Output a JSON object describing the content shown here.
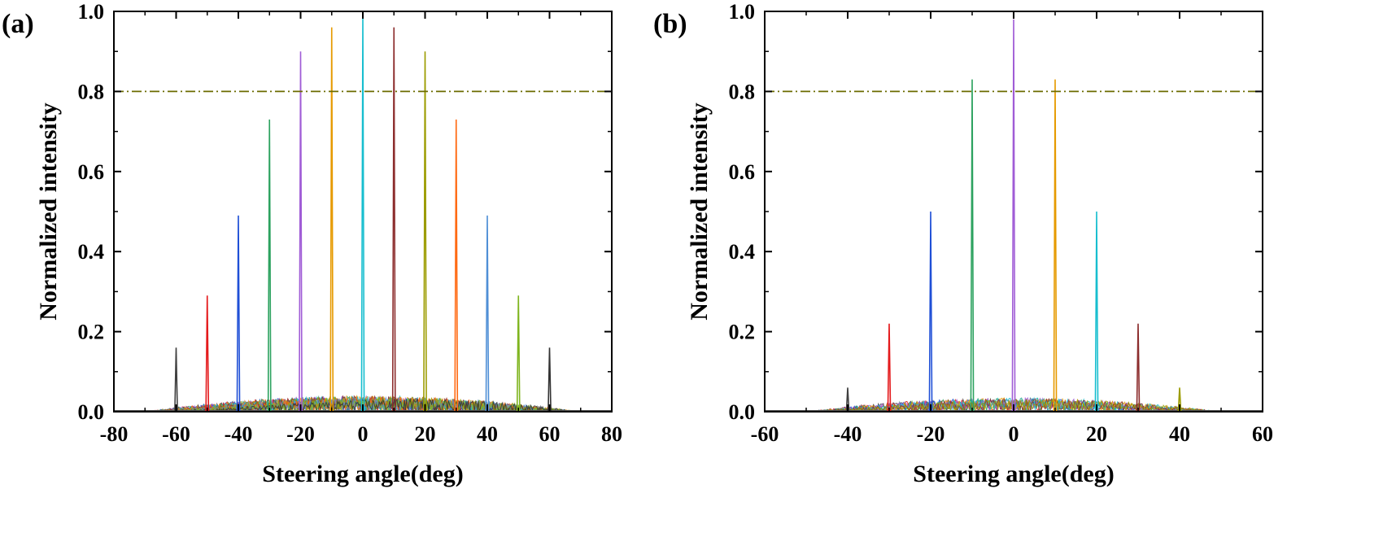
{
  "chart_data": [
    {
      "type": "line",
      "panel_label": "(a)",
      "xlabel": "Steering angle(deg)",
      "ylabel": "Normalized intensity",
      "xlim": [
        -80,
        80
      ],
      "ylim": [
        0,
        1.0
      ],
      "xticks": [
        -80,
        -60,
        -40,
        -20,
        0,
        20,
        40,
        60,
        80
      ],
      "xtick_labels": [
        "-80",
        "-60",
        "-40",
        "-20",
        "0",
        "20",
        "40",
        "60",
        "80"
      ],
      "yticks": [
        0,
        0.2,
        0.4,
        0.6,
        0.8,
        1.0
      ],
      "ytick_labels": [
        "0.0",
        "0.2",
        "0.4",
        "0.6",
        "0.8",
        "1.0"
      ],
      "threshold": {
        "value": 0.8,
        "color": "#6b6b00",
        "style": "dash-dot"
      },
      "sidelobe": {
        "amplitude": 0.04,
        "range": [
          -70,
          70
        ]
      },
      "series": [
        {
          "name": "-60°",
          "peak_angle": -60,
          "peak": 0.16,
          "color": "#404040"
        },
        {
          "name": "-50°",
          "peak_angle": -50,
          "peak": 0.29,
          "color": "#e41a1c"
        },
        {
          "name": "-40°",
          "peak_angle": -40,
          "peak": 0.49,
          "color": "#1f4fd6"
        },
        {
          "name": "-30°",
          "peak_angle": -30,
          "peak": 0.73,
          "color": "#2ca25f"
        },
        {
          "name": "-20°",
          "peak_angle": -20,
          "peak": 0.9,
          "color": "#a05cd6"
        },
        {
          "name": "-10°",
          "peak_angle": -10,
          "peak": 0.96,
          "color": "#e69a00"
        },
        {
          "name": "0°",
          "peak_angle": 0,
          "peak": 0.99,
          "color": "#17becf"
        },
        {
          "name": "10°",
          "peak_angle": 10,
          "peak": 0.96,
          "color": "#8c2d2d"
        },
        {
          "name": "20°",
          "peak_angle": 20,
          "peak": 0.9,
          "color": "#9c9c00"
        },
        {
          "name": "30°",
          "peak_angle": 30,
          "peak": 0.73,
          "color": "#ff6a13"
        },
        {
          "name": "40°",
          "peak_angle": 40,
          "peak": 0.49,
          "color": "#4f8fd6"
        },
        {
          "name": "50°",
          "peak_angle": 50,
          "peak": 0.29,
          "color": "#7fb51f"
        },
        {
          "name": "60°",
          "peak_angle": 60,
          "peak": 0.16,
          "color": "#333333"
        }
      ]
    },
    {
      "type": "line",
      "panel_label": "(b)",
      "xlabel": "Steering angle(deg)",
      "ylabel": "Normalized intensity",
      "xlim": [
        -60,
        60
      ],
      "ylim": [
        0,
        1.0
      ],
      "xticks": [
        -60,
        -40,
        -20,
        0,
        20,
        40,
        60
      ],
      "xtick_labels": [
        "-60",
        "-40",
        "-20",
        "0",
        "20",
        "40",
        "60"
      ],
      "yticks": [
        0,
        0.2,
        0.4,
        0.6,
        0.8,
        1.0
      ],
      "ytick_labels": [
        "0.0",
        "0.2",
        "0.4",
        "0.6",
        "0.8",
        "1.0"
      ],
      "threshold": {
        "value": 0.8,
        "color": "#6b6b00",
        "style": "dash-dot"
      },
      "sidelobe": {
        "amplitude": 0.035,
        "range": [
          -50,
          50
        ]
      },
      "series": [
        {
          "name": "-40°",
          "peak_angle": -40,
          "peak": 0.06,
          "color": "#404040"
        },
        {
          "name": "-30°",
          "peak_angle": -30,
          "peak": 0.22,
          "color": "#e41a1c"
        },
        {
          "name": "-20°",
          "peak_angle": -20,
          "peak": 0.5,
          "color": "#1f4fd6"
        },
        {
          "name": "-10°",
          "peak_angle": -10,
          "peak": 0.83,
          "color": "#2ca25f"
        },
        {
          "name": "0°",
          "peak_angle": 0,
          "peak": 0.98,
          "color": "#a05cd6"
        },
        {
          "name": "10°",
          "peak_angle": 10,
          "peak": 0.83,
          "color": "#e69a00"
        },
        {
          "name": "20°",
          "peak_angle": 20,
          "peak": 0.5,
          "color": "#17becf"
        },
        {
          "name": "30°",
          "peak_angle": 30,
          "peak": 0.22,
          "color": "#8c2d2d"
        },
        {
          "name": "40°",
          "peak_angle": 40,
          "peak": 0.06,
          "color": "#9c9c00"
        }
      ]
    }
  ]
}
